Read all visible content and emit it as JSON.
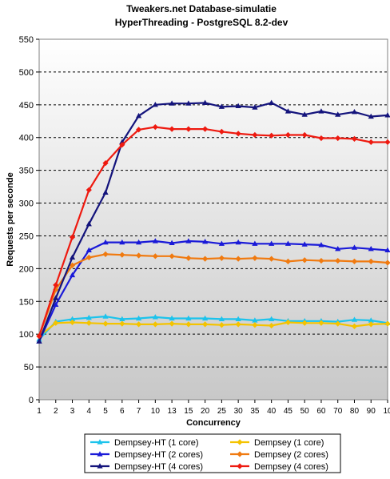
{
  "chart_data": {
    "type": "line",
    "title": "Tweakers.net Database-simulatie",
    "subtitle": "HyperThreading - PostgreSQL 8.2-dev",
    "xlabel": "Concurrency",
    "ylabel": "Requests per seconde",
    "ylim": [
      0,
      550
    ],
    "yticks": [
      0,
      50,
      100,
      150,
      200,
      250,
      300,
      350,
      400,
      450,
      500,
      550
    ],
    "grid": "horizontal dashed",
    "legend_position": "bottom",
    "categories": [
      "1",
      "2",
      "3",
      "4",
      "5",
      "6",
      "7",
      "10",
      "13",
      "15",
      "20",
      "25",
      "30",
      "35",
      "40",
      "45",
      "50",
      "60",
      "70",
      "80",
      "90",
      "10"
    ],
    "series": [
      {
        "name": "Dempsey-HT (1 core)",
        "color": "#1cc3ec",
        "marker": "triangle",
        "values": [
          92,
          119,
          123,
          125,
          127,
          123,
          124,
          126,
          124,
          124,
          124,
          123,
          123,
          121,
          123,
          120,
          120,
          120,
          119,
          122,
          121,
          117
        ]
      },
      {
        "name": "Dempsey (1 core)",
        "color": "#f4c300",
        "marker": "diamond",
        "values": [
          97,
          117,
          118,
          117,
          116,
          116,
          115,
          115,
          116,
          115,
          115,
          114,
          115,
          114,
          113,
          118,
          117,
          117,
          116,
          112,
          115,
          116
        ]
      },
      {
        "name": "Dempsey-HT (2 cores)",
        "color": "#1a1ad8",
        "marker": "triangle",
        "values": [
          89,
          145,
          190,
          228,
          240,
          240,
          240,
          242,
          239,
          242,
          241,
          238,
          240,
          238,
          238,
          238,
          237,
          236,
          230,
          232,
          230,
          228
        ]
      },
      {
        "name": "Dempsey (2 cores)",
        "color": "#f07a10",
        "marker": "diamond",
        "values": [
          97,
          168,
          205,
          217,
          222,
          221,
          220,
          219,
          219,
          216,
          215,
          216,
          215,
          216,
          215,
          211,
          213,
          212,
          212,
          211,
          211,
          209
        ]
      },
      {
        "name": "Dempsey-HT (4 cores)",
        "color": "#14147c",
        "marker": "triangle",
        "values": [
          89,
          155,
          217,
          268,
          316,
          393,
          433,
          450,
          452,
          452,
          453,
          447,
          448,
          446,
          453,
          440,
          435,
          440,
          435,
          439,
          432,
          434
        ]
      },
      {
        "name": "Dempsey (4 cores)",
        "color": "#ee1a10",
        "marker": "diamond",
        "values": [
          97,
          175,
          248,
          320,
          361,
          389,
          412,
          416,
          413,
          413,
          413,
          409,
          406,
          404,
          403,
          404,
          404,
          399,
          399,
          398,
          393,
          393
        ]
      }
    ]
  }
}
